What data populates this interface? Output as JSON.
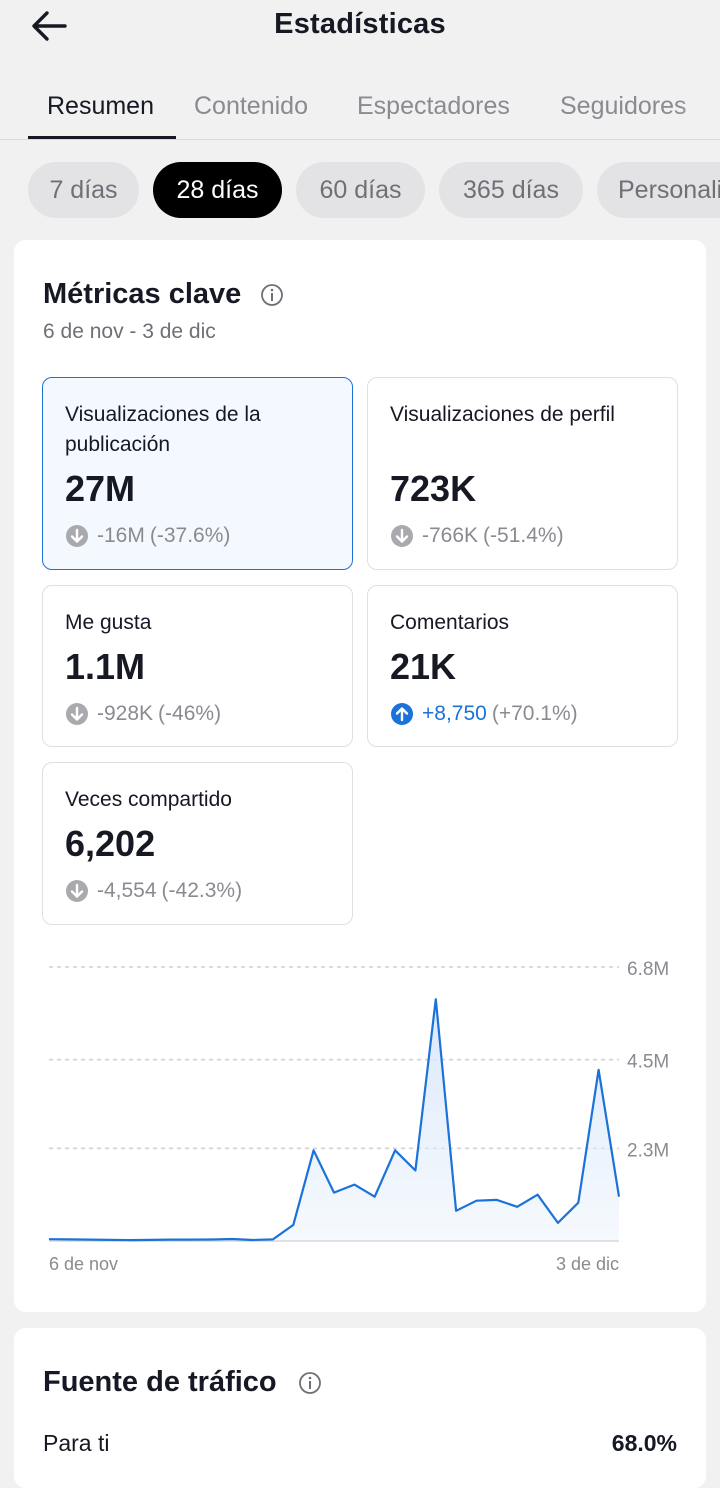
{
  "header": {
    "title": "Estadísticas",
    "back_icon": "arrow-left-icon"
  },
  "tabs": [
    {
      "label": "Resumen",
      "active": true
    },
    {
      "label": "Contenido",
      "active": false
    },
    {
      "label": "Espectadores",
      "active": false
    },
    {
      "label": "Seguidores",
      "active": false
    }
  ],
  "periods": [
    {
      "label": "7 días",
      "active": false
    },
    {
      "label": "28 días",
      "active": true
    },
    {
      "label": "60 días",
      "active": false
    },
    {
      "label": "365 días",
      "active": false
    },
    {
      "label": "Personalizado",
      "active": false
    }
  ],
  "key_metrics": {
    "title": "Métricas clave",
    "info_icon": "info-icon",
    "date_range": "6 de nov - 3 de dic",
    "items": [
      {
        "label": "Visualizaciones de la publicación",
        "value": "27M",
        "change": "-16M",
        "change_pct": "(-37.6%)",
        "direction": "down",
        "selected": true
      },
      {
        "label": "Visualizaciones de perfil",
        "value": "723K",
        "change": "-766K",
        "change_pct": "(-51.4%)",
        "direction": "down",
        "selected": false
      },
      {
        "label": "Me gusta",
        "value": "1.1M",
        "change": "-928K",
        "change_pct": "(-46%)",
        "direction": "down",
        "selected": false
      },
      {
        "label": "Comentarios",
        "value": "21K",
        "change": "+8,750",
        "change_pct": "(+70.1%)",
        "direction": "up",
        "selected": false
      },
      {
        "label": "Veces compartido",
        "value": "6,202",
        "change": "-4,554",
        "change_pct": "(-42.3%)",
        "direction": "down",
        "selected": false
      }
    ]
  },
  "chart_data": {
    "type": "area",
    "x_start_label": "6 de nov",
    "x_end_label": "3 de dic",
    "y_ticks": [
      "2.3M",
      "4.5M",
      "6.8M"
    ],
    "y_tick_values": [
      2300000,
      4500000,
      6800000
    ],
    "ylim": [
      0,
      6800000
    ],
    "values": [
      45000,
      40000,
      35000,
      28000,
      22000,
      28000,
      35000,
      35000,
      38000,
      50000,
      25000,
      40000,
      400000,
      2250000,
      1200000,
      1400000,
      1100000,
      2250000,
      1750000,
      6000000,
      750000,
      1000000,
      1020000,
      850000,
      1150000,
      450000,
      950000,
      4250000,
      1100000
    ],
    "color": "#1b72d8",
    "fill_color": "#dbe9fa",
    "grid": "dashed",
    "y_axis_side": "right"
  },
  "traffic": {
    "title": "Fuente de tráfico",
    "info_icon": "info-icon",
    "rows": [
      {
        "label": "Para ti",
        "value": "68.0%"
      }
    ]
  },
  "colors": {
    "accent": "#1b72d8",
    "negative_badge": "#a9aaae",
    "active_chip": "#000000"
  }
}
